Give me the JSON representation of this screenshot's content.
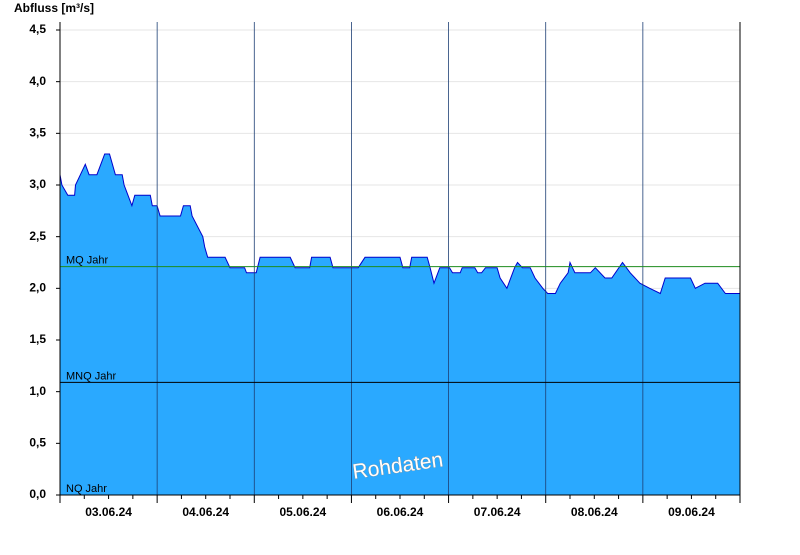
{
  "chart_data": {
    "type": "area",
    "y_label": "Abfluss [m³/s]",
    "annotation": "Rohdaten",
    "xlim": [
      0,
      7
    ],
    "xticks": [
      {
        "value": 0.5,
        "label": "03.06.24"
      },
      {
        "value": 1.5,
        "label": "04.06.24"
      },
      {
        "value": 2.5,
        "label": "05.06.24"
      },
      {
        "value": 3.5,
        "label": "06.06.24"
      },
      {
        "value": 4.5,
        "label": "07.06.24"
      },
      {
        "value": 5.5,
        "label": "08.06.24"
      },
      {
        "value": 6.5,
        "label": "09.06.24"
      }
    ],
    "ylim": [
      0,
      4.5
    ],
    "yticks": [
      {
        "value": 0,
        "label": "0,0"
      },
      {
        "value": 0.5,
        "label": "0,5"
      },
      {
        "value": 1,
        "label": "1,0"
      },
      {
        "value": 1.5,
        "label": "1,5"
      },
      {
        "value": 2,
        "label": "2,0"
      },
      {
        "value": 2.5,
        "label": "2,5"
      },
      {
        "value": 3,
        "label": "3,0"
      },
      {
        "value": 3.5,
        "label": "3,5"
      },
      {
        "value": 4,
        "label": "4,0"
      },
      {
        "value": 4.5,
        "label": "4,5"
      }
    ],
    "grid": true,
    "reference_lines": [
      {
        "label": "MQ Jahr",
        "value": 2.21,
        "color": "#1e8c1e"
      },
      {
        "label": "MNQ Jahr",
        "value": 1.09,
        "color": "#000000"
      },
      {
        "label": "NQ Jahr",
        "value": 0,
        "color": "#000000"
      }
    ],
    "x": [
      0,
      0.02,
      0.08,
      0.15,
      0.16,
      0.21,
      0.26,
      0.3,
      0.38,
      0.46,
      0.51,
      0.57,
      0.64,
      0.66,
      0.7,
      0.74,
      0.77,
      0.93,
      0.95,
      1.0,
      1.03,
      1.24,
      1.27,
      1.34,
      1.36,
      1.47,
      1.49,
      1.52,
      1.7,
      1.75,
      1.9,
      1.92,
      2.02,
      2.06,
      2.37,
      2.42,
      2.57,
      2.59,
      2.78,
      2.81,
      3.07,
      3.14,
      3.5,
      3.53,
      3.6,
      3.62,
      3.78,
      3.81,
      3.85,
      3.91,
      4.01,
      4.04,
      4.12,
      4.14,
      4.27,
      4.3,
      4.34,
      4.38,
      4.5,
      4.53,
      4.6,
      4.68,
      4.71,
      4.76,
      4.84,
      4.89,
      4.97,
      5.02,
      5.1,
      5.15,
      5.23,
      5.25,
      5.3,
      5.46,
      5.51,
      5.61,
      5.68,
      5.79,
      5.87,
      5.97,
      6.07,
      6.18,
      6.23,
      6.49,
      6.54,
      6.64,
      6.77,
      6.85,
      7.0
    ],
    "series": [
      {
        "fill": "#2aa9ff",
        "color": "#0000cc",
        "values": [
          3.1,
          3.0,
          2.9,
          2.9,
          3.0,
          3.1,
          3.2,
          3.1,
          3.1,
          3.3,
          3.3,
          3.1,
          3.1,
          3.0,
          2.9,
          2.8,
          2.9,
          2.9,
          2.8,
          2.8,
          2.7,
          2.7,
          2.8,
          2.8,
          2.7,
          2.5,
          2.4,
          2.3,
          2.3,
          2.2,
          2.2,
          2.15,
          2.15,
          2.3,
          2.3,
          2.2,
          2.2,
          2.3,
          2.3,
          2.2,
          2.2,
          2.3,
          2.3,
          2.2,
          2.2,
          2.3,
          2.3,
          2.2,
          2.05,
          2.2,
          2.2,
          2.15,
          2.15,
          2.2,
          2.2,
          2.15,
          2.15,
          2.2,
          2.2,
          2.1,
          2.0,
          2.2,
          2.25,
          2.2,
          2.2,
          2.1,
          2.0,
          1.95,
          1.95,
          2.05,
          2.15,
          2.25,
          2.15,
          2.15,
          2.2,
          2.1,
          2.1,
          2.25,
          2.15,
          2.05,
          2.0,
          1.95,
          2.1,
          2.1,
          2.0,
          2.05,
          2.05,
          1.95,
          1.95
        ]
      }
    ]
  }
}
